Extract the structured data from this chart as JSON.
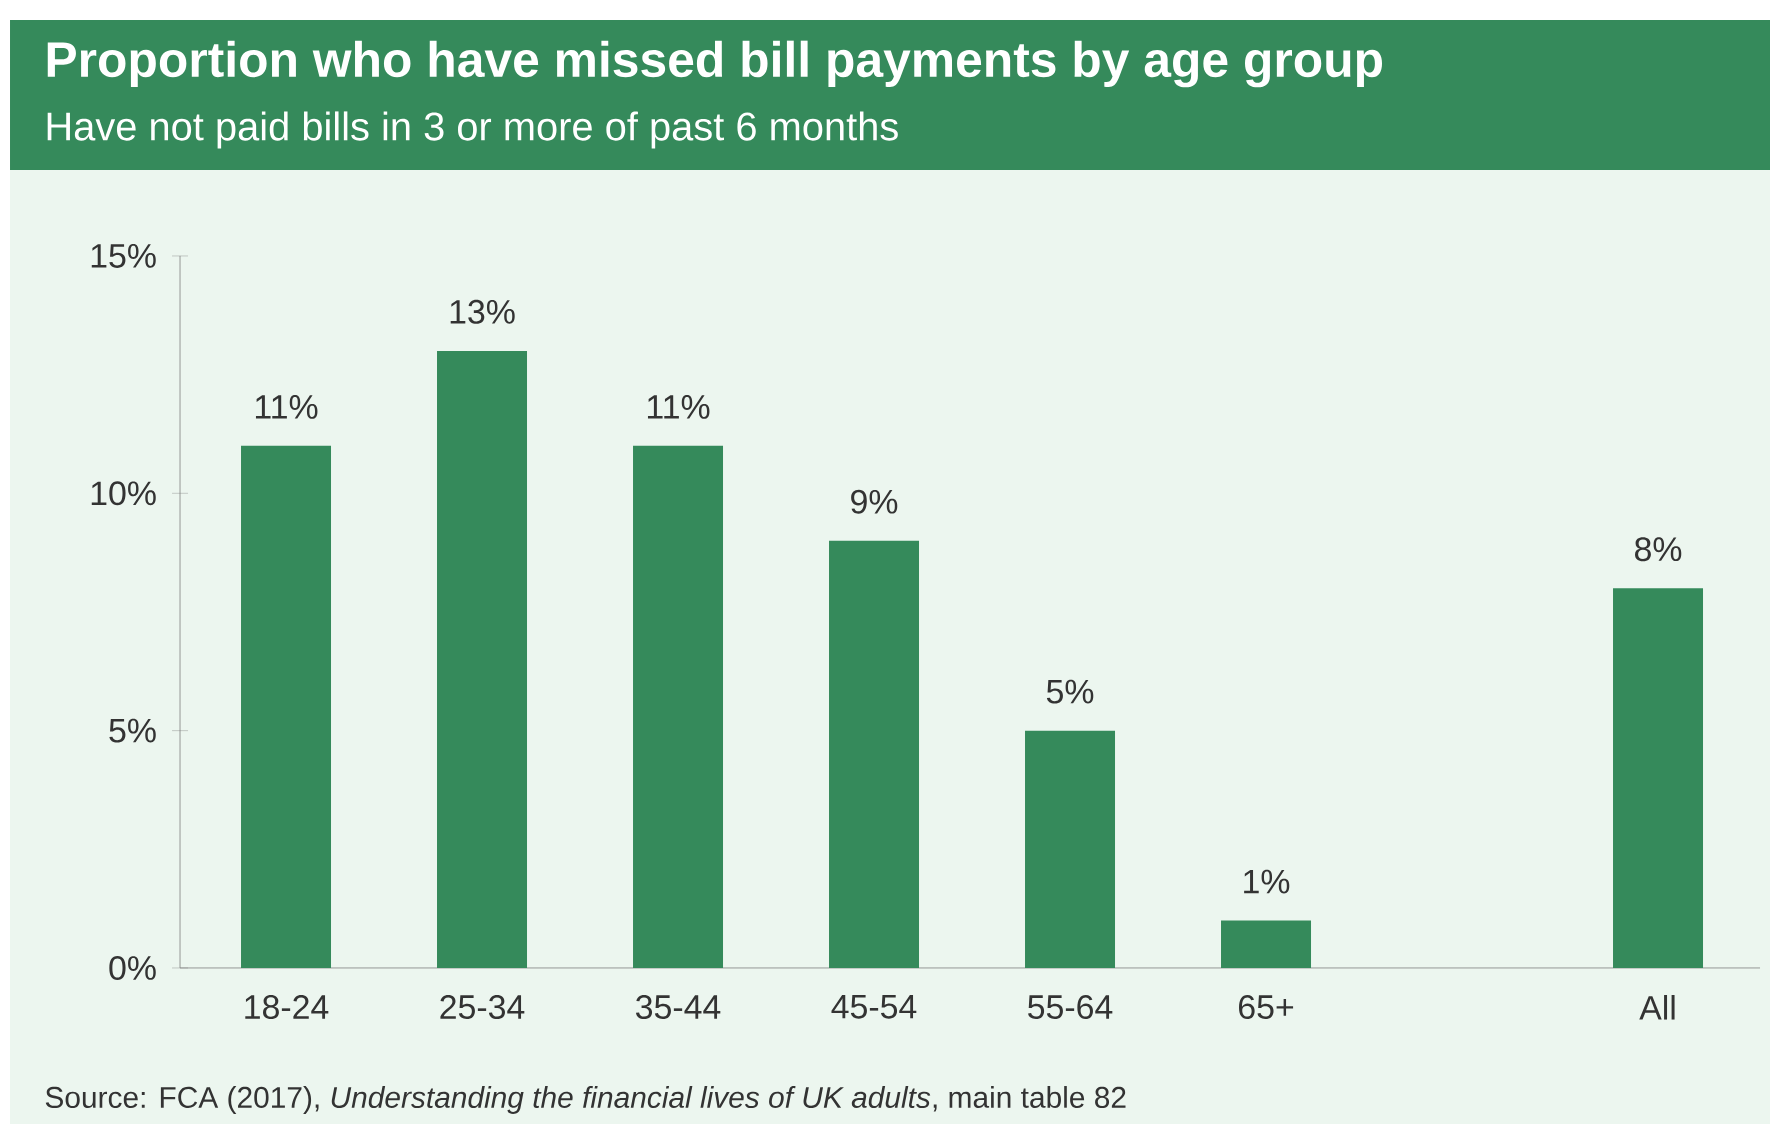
{
  "chart_data": {
    "type": "bar",
    "title": "Proportion who have missed bill payments by age group",
    "subtitle": "Have not paid bills in 3 or more of past 6 months",
    "categories": [
      "18-24",
      "25-34",
      "35-44",
      "45-54",
      "55-64",
      "65+",
      null,
      "All"
    ],
    "values": [
      11,
      13,
      11,
      9,
      5,
      1,
      null,
      8
    ],
    "value_labels": [
      "11%",
      "13%",
      "11%",
      "9%",
      "5%",
      "1%",
      null,
      "8%"
    ],
    "color": "#358a5b",
    "ylim": [
      0,
      15
    ],
    "yticks": [
      {
        "value": 0,
        "label": "0%"
      },
      {
        "value": 5,
        "label": "5%"
      },
      {
        "value": 10,
        "label": "10%"
      },
      {
        "value": 15,
        "label": "15%"
      }
    ],
    "annotations": [
      "Source: FCA (2017), *Understanding the financial lives of UK adults*, main table 82"
    ]
  }
}
